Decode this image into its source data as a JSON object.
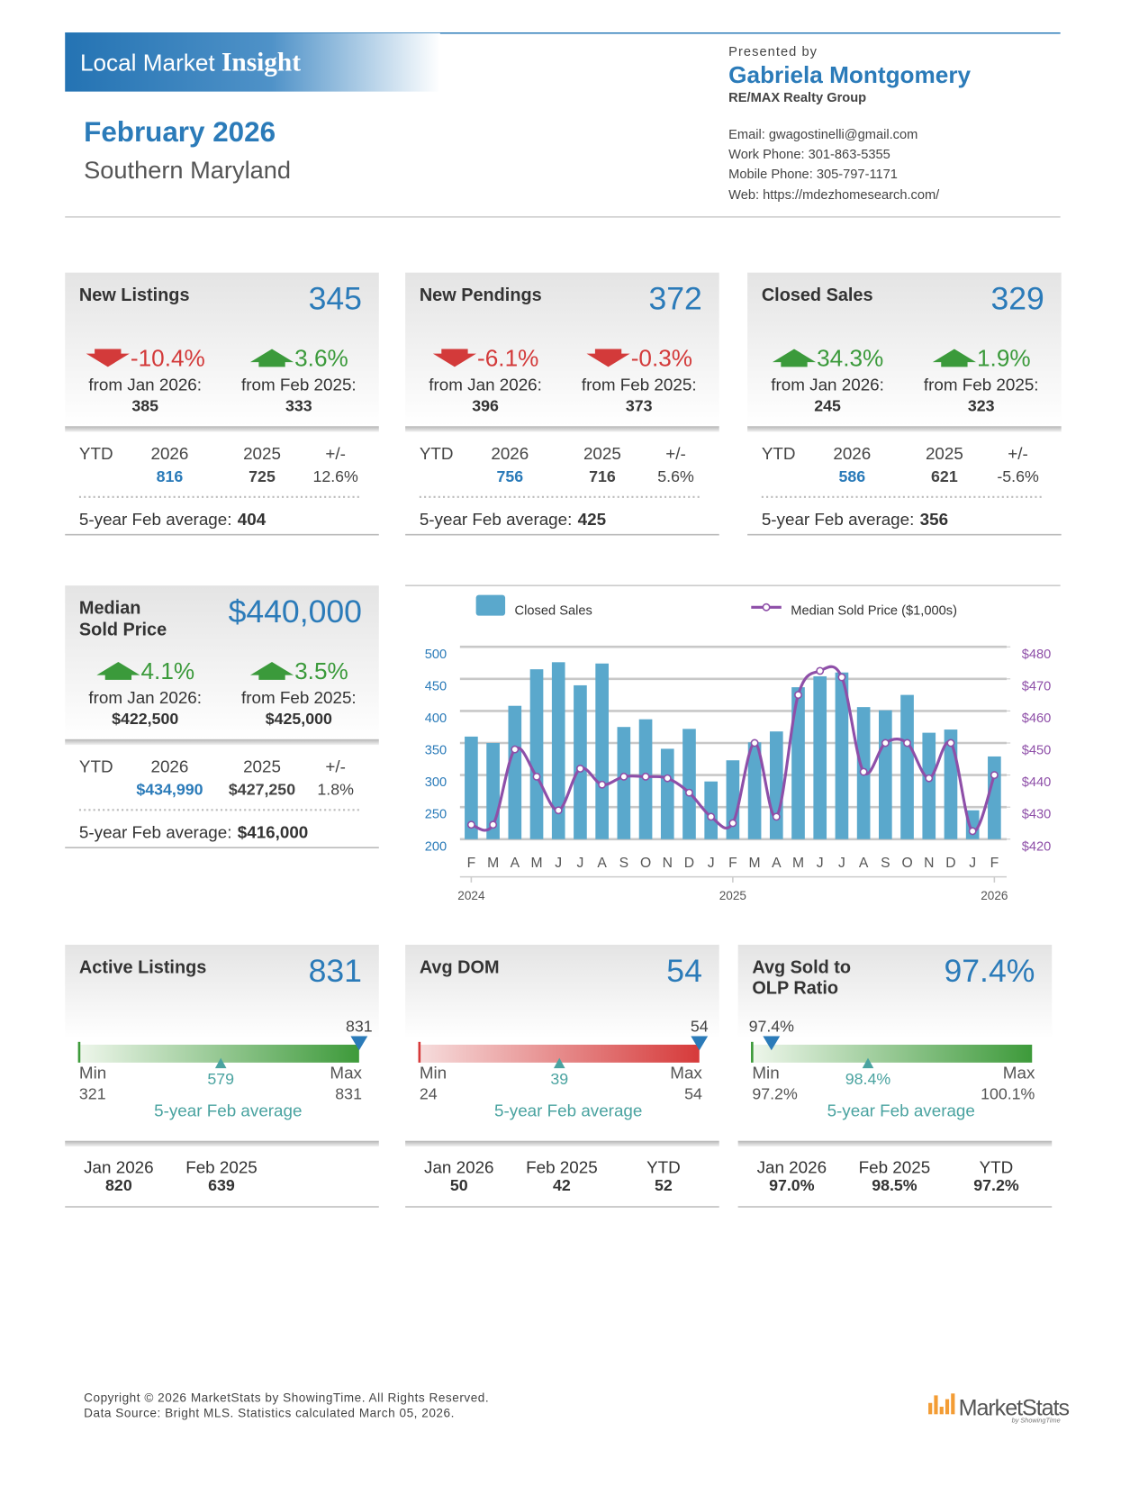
{
  "header": {
    "banner": "Local Market",
    "banner_bold": "Insight",
    "month": "February 2026",
    "region": "Southern Maryland",
    "presented_by": "Presented by",
    "agent": "Gabriela Montgomery",
    "company": "RE/MAX Realty Group",
    "contacts": [
      "Email: gwagostinelli@gmail.com",
      "Work Phone: 301-863-5355",
      "Mobile Phone: 305-797-1171",
      "Web: https://mdezhomesearch.com/"
    ]
  },
  "ytd_header": [
    "YTD",
    "2026",
    "2025",
    "+/-"
  ],
  "avg_label": "5-year Feb average:",
  "cards": [
    {
      "title_lines": [
        "New Listings"
      ],
      "value": "345",
      "changes": [
        {
          "trend": "down",
          "pct": "-10.4%",
          "label": "from Jan 2026:",
          "prior": "385"
        },
        {
          "trend": "up",
          "pct": "3.6%",
          "label": "from Feb 2025:",
          "prior": "333"
        }
      ],
      "ytd": [
        "816",
        "725",
        "12.6%"
      ],
      "avg": "404"
    },
    {
      "title_lines": [
        "New Pendings"
      ],
      "value": "372",
      "changes": [
        {
          "trend": "down",
          "pct": "-6.1%",
          "label": "from Jan 2026:",
          "prior": "396"
        },
        {
          "trend": "down",
          "pct": "-0.3%",
          "label": "from Feb 2025:",
          "prior": "373"
        }
      ],
      "ytd": [
        "756",
        "716",
        "5.6%"
      ],
      "avg": "425"
    },
    {
      "title_lines": [
        "Closed Sales"
      ],
      "value": "329",
      "changes": [
        {
          "trend": "up",
          "pct": "34.3%",
          "label": "from Jan 2026:",
          "prior": "245"
        },
        {
          "trend": "up",
          "pct": "1.9%",
          "label": "from Feb 2025:",
          "prior": "323"
        }
      ],
      "ytd": [
        "586",
        "621",
        "-5.6%"
      ],
      "avg": "356"
    },
    {
      "title_lines": [
        "Median",
        "Sold Price"
      ],
      "value": "$440,000",
      "changes": [
        {
          "trend": "up",
          "pct": "4.1%",
          "label": "from Jan 2026:",
          "prior": "$422,500"
        },
        {
          "trend": "up",
          "pct": "3.5%",
          "label": "from Feb 2025:",
          "prior": "$425,000"
        }
      ],
      "ytd": [
        "$434,990",
        "$427,250",
        "1.8%"
      ],
      "avg": "$416,000"
    }
  ],
  "chart": {
    "type": "bar",
    "categories": [
      "F",
      "M",
      "A",
      "M",
      "J",
      "J",
      "A",
      "S",
      "O",
      "N",
      "D",
      "J",
      "F",
      "M",
      "A",
      "M",
      "J",
      "J",
      "A",
      "S",
      "O",
      "N",
      "D",
      "J",
      "F"
    ],
    "year_ticks": [
      {
        "value": 0,
        "label": "2024"
      },
      {
        "value": 12,
        "label": "2025"
      },
      {
        "value": 24,
        "label": "2026"
      }
    ],
    "series": [
      {
        "name": "Closed Sales",
        "color": "#5aa8cc",
        "values": [
          360,
          350,
          408,
          465,
          476,
          440,
          474,
          375,
          387,
          341,
          372,
          290,
          323,
          351,
          368,
          437,
          454,
          460,
          406,
          401,
          425,
          366,
          371,
          245,
          329
        ]
      },
      {
        "name": "Median Sold Price ($1,000s)",
        "type": "line",
        "axis": "y2",
        "color": "#8e4fa8",
        "values": [
          424.5,
          424.5,
          448,
          439.5,
          429,
          442,
          437,
          439.5,
          439.5,
          439,
          434.5,
          427,
          425,
          450,
          427,
          465,
          472.5,
          470.5,
          441,
          450,
          450,
          439,
          450,
          422.5,
          440
        ]
      }
    ],
    "ylim": [
      200,
      500
    ],
    "yticks": [
      200,
      250,
      300,
      350,
      400,
      450,
      500
    ],
    "y2lim": [
      420,
      480
    ],
    "y2ticks": [
      {
        "value": 420,
        "label": "$420"
      },
      {
        "value": 430,
        "label": "$430"
      },
      {
        "value": 440,
        "label": "$440"
      },
      {
        "value": 450,
        "label": "$450"
      },
      {
        "value": 460,
        "label": "$460"
      },
      {
        "value": 470,
        "label": "$470"
      },
      {
        "value": 480,
        "label": "$480"
      }
    ],
    "grid": true
  },
  "gauge_labels": {
    "min": "Min",
    "max": "Max",
    "avg": "5-year Feb average"
  },
  "gauges": [
    {
      "title_lines": [
        "Active Listings"
      ],
      "value": "831",
      "color": "green",
      "current": 831,
      "min": 321,
      "max": 831,
      "avg": 579,
      "compare": [
        {
          "label": "Jan 2026",
          "value": "820"
        },
        {
          "label": "Feb 2025",
          "value": "639"
        }
      ]
    },
    {
      "title_lines": [
        "Avg DOM"
      ],
      "value": "54",
      "color": "red",
      "current": 54,
      "min": 24,
      "max": 54,
      "avg": 39,
      "compare": [
        {
          "label": "Jan 2026",
          "value": "50"
        },
        {
          "label": "Feb 2025",
          "value": "42"
        },
        {
          "label": "YTD",
          "value": "52"
        }
      ]
    },
    {
      "title_lines": [
        "Avg Sold to",
        "OLP Ratio"
      ],
      "value": "97.4%",
      "color": "green",
      "current": {
        "value": 97.4,
        "label": "97.4%"
      },
      "min": {
        "value": 97.2,
        "label": "97.2%"
      },
      "max": {
        "value": 100.1,
        "label": "100.1%"
      },
      "avg": {
        "value": 98.4,
        "label": "98.4%"
      },
      "compare": [
        {
          "label": "Jan 2026",
          "value": "97.0%"
        },
        {
          "label": "Feb 2025",
          "value": "98.5%"
        },
        {
          "label": "YTD",
          "value": "97.2%"
        }
      ]
    }
  ],
  "footer": {
    "copyright": "Copyright © 2026 MarketStats by ShowingTime. All Rights Reserved.",
    "source": "Data Source: Bright MLS. Statistics calculated March 05, 2026.",
    "logo": "MarketStats",
    "logo_sub": "by ShowingTime"
  }
}
